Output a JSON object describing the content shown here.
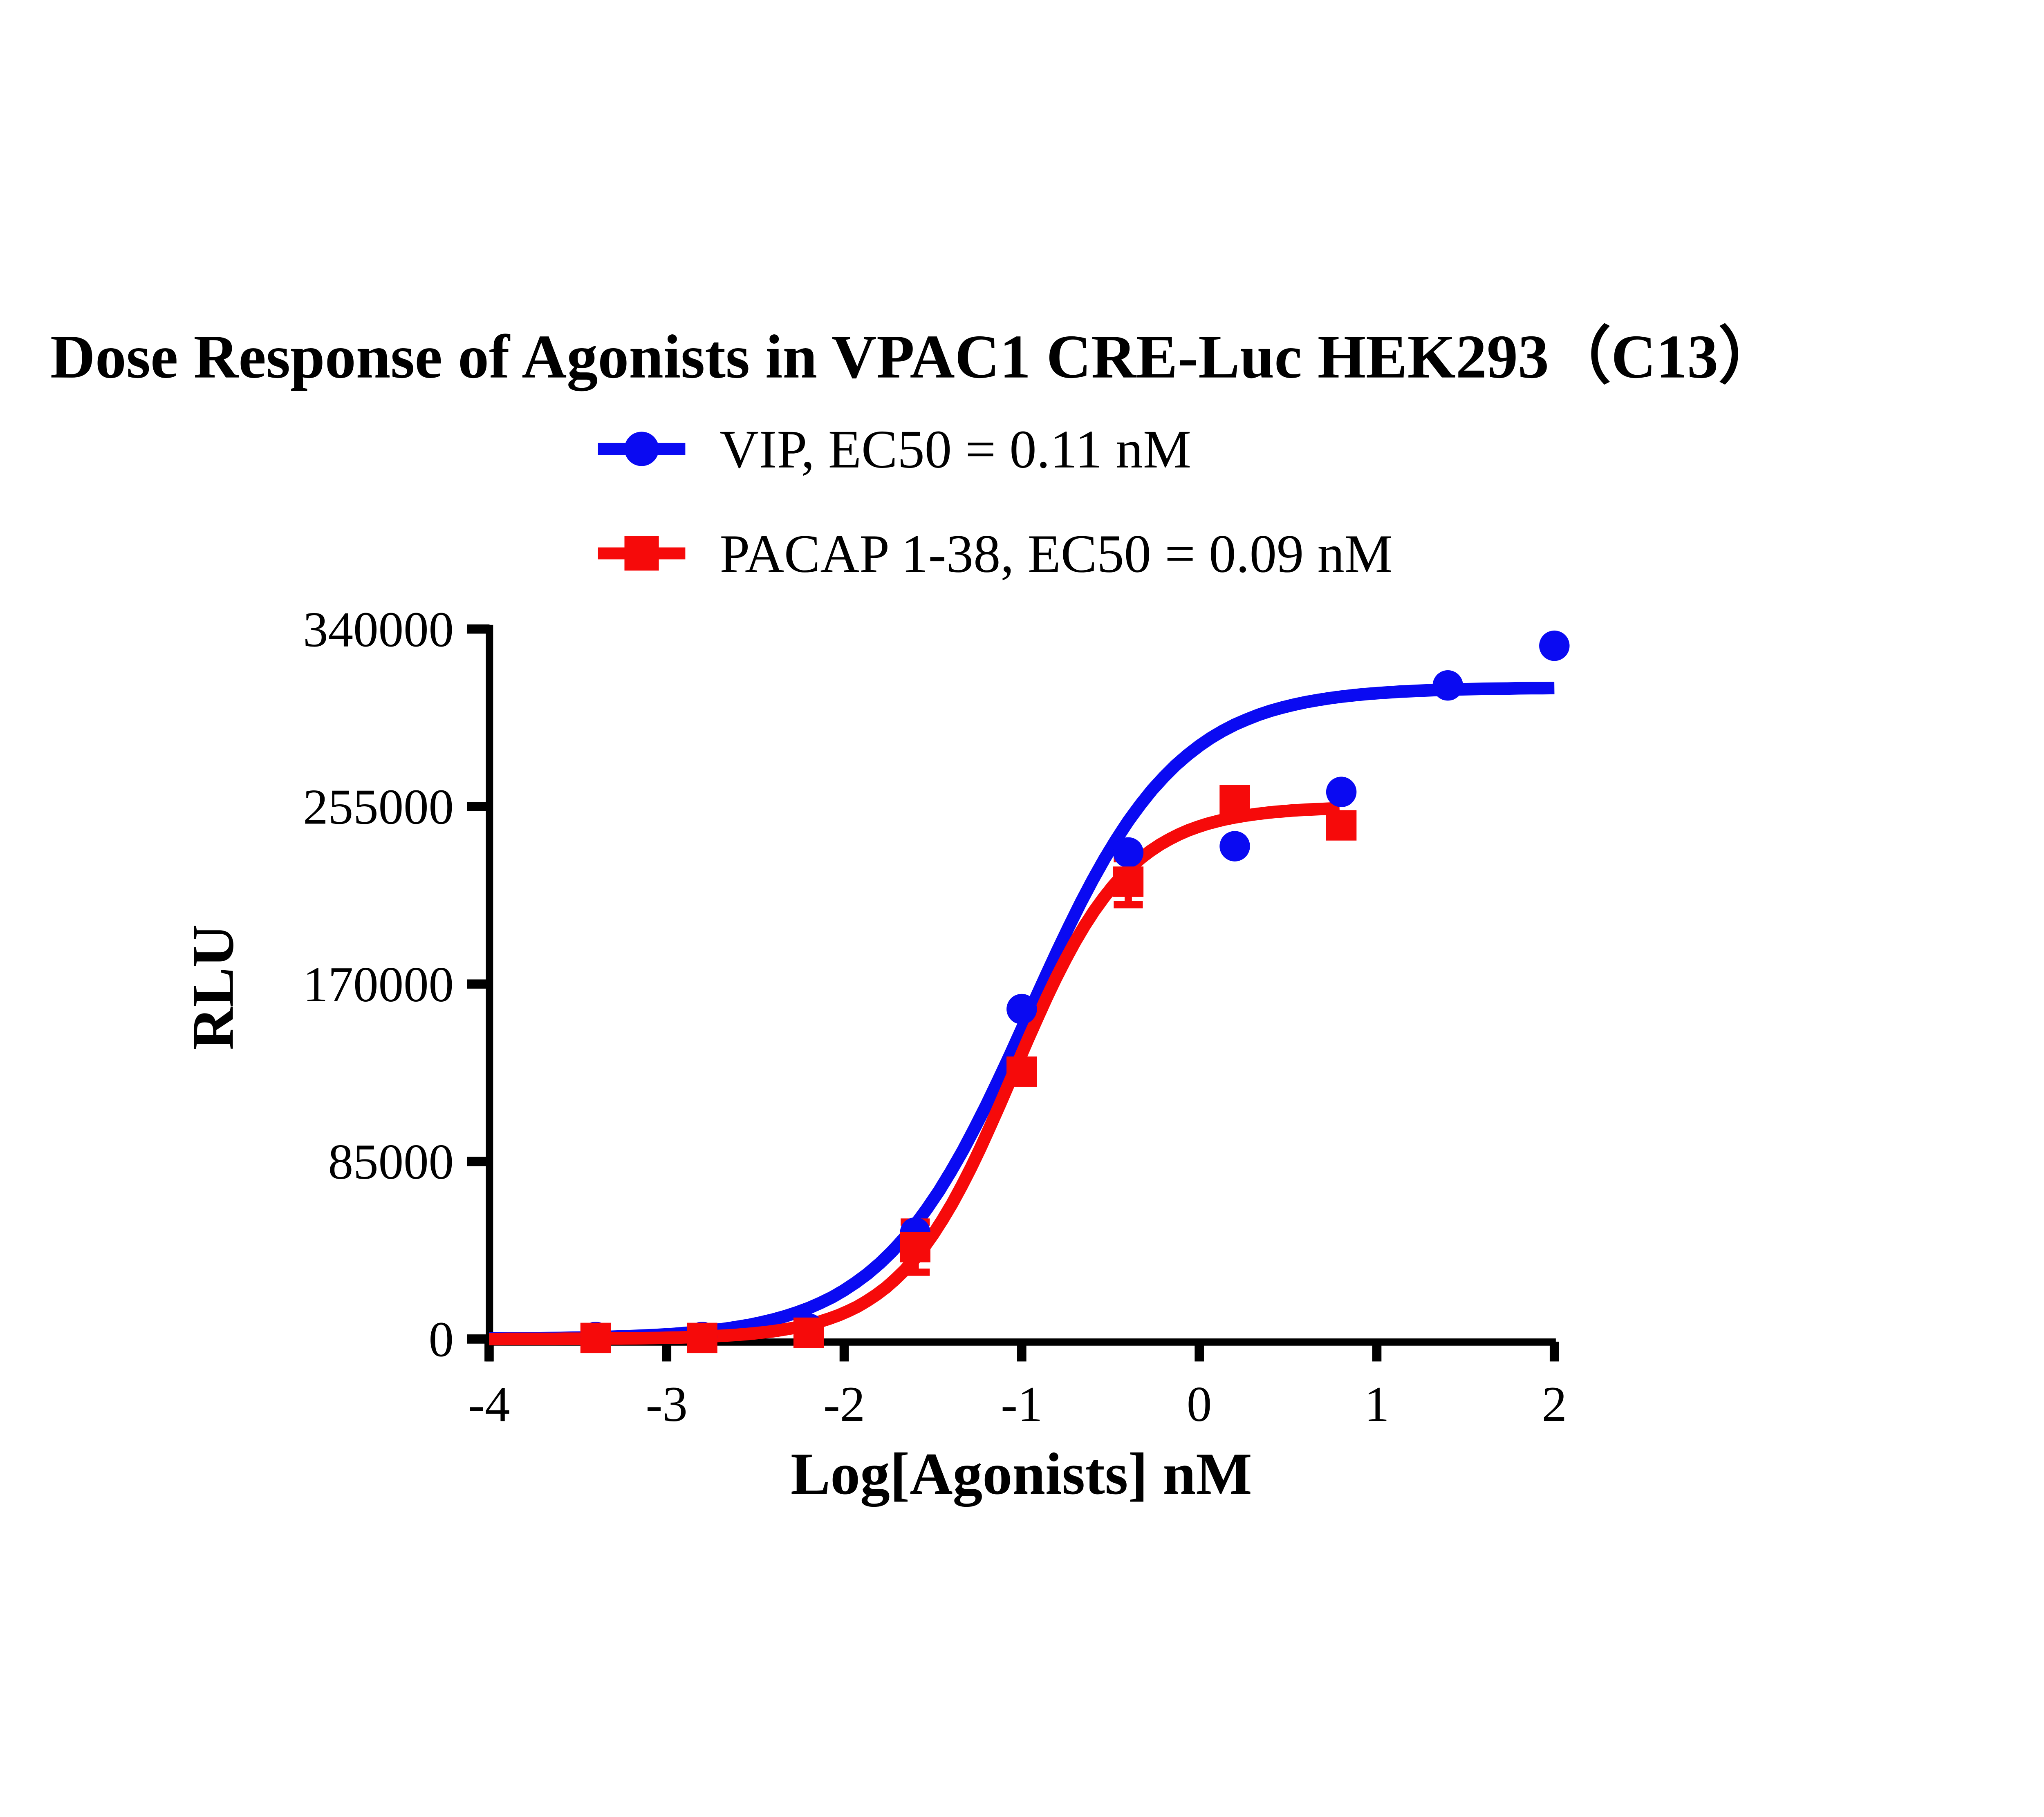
{
  "title": "Dose Response of Agonists in VPAC1 CRE-Luc HEK293（C13）",
  "colors": {
    "blue": "#0a0af2",
    "red": "#f60a0a",
    "axis": "#000000",
    "background": "#ffffff"
  },
  "legend": [
    {
      "label": "VIP, EC50 = 0.11 nM",
      "color": "#0a0af2",
      "marker": "circle"
    },
    {
      "label": "PACAP 1-38, EC50 = 0.09 nM",
      "color": "#f60a0a",
      "marker": "square"
    }
  ],
  "chart_data": {
    "type": "scatter",
    "title": "Dose Response of Agonists in VPAC1 CRE-Luc HEK293（C13）",
    "xlabel": "Log[Agonists] nM",
    "ylabel": "RLU",
    "xlim": [
      -4,
      2
    ],
    "ylim": [
      0,
      340000
    ],
    "x_ticks": [
      -4,
      -3,
      -2,
      -1,
      0,
      1,
      2
    ],
    "y_ticks": [
      0,
      85000,
      170000,
      255000,
      340000
    ],
    "grid": false,
    "legend_position": "top-center",
    "series": [
      {
        "name": "VIP, EC50 = 0.11 nM",
        "ec50_nM": 0.11,
        "color": "#0a0af2",
        "marker": "circle",
        "x": [
          -3.4,
          -2.8,
          -2.2,
          -1.6,
          -1.0,
          -0.4,
          0.2,
          0.8,
          1.4,
          2.0
        ],
        "y": [
          1000,
          1000,
          5000,
          51000,
          158000,
          233000,
          236000,
          262000,
          313000,
          332000
        ],
        "fit": {
          "model": "4PL",
          "bottom": 0,
          "top": 312000,
          "logEC50": -0.96,
          "hill": 1.05,
          "draw_from": -4,
          "draw_to": 2.0
        }
      },
      {
        "name": "PACAP 1-38, EC50 = 0.09 nM",
        "ec50_nM": 0.09,
        "color": "#f60a0a",
        "marker": "square",
        "x": [
          -3.4,
          -2.8,
          -2.2,
          -1.6,
          -1.0,
          -0.4,
          0.2,
          0.8
        ],
        "y": [
          500,
          500,
          3000,
          44000,
          128000,
          219000,
          258000,
          246000
        ],
        "error": [
          0,
          0,
          0,
          12000,
          0,
          11000,
          0,
          0
        ],
        "fit": {
          "model": "4PL",
          "bottom": 0,
          "top": 255000,
          "logEC50": -1.046,
          "hill": 1.35,
          "draw_from": -4,
          "draw_to": 0.79
        }
      }
    ]
  }
}
